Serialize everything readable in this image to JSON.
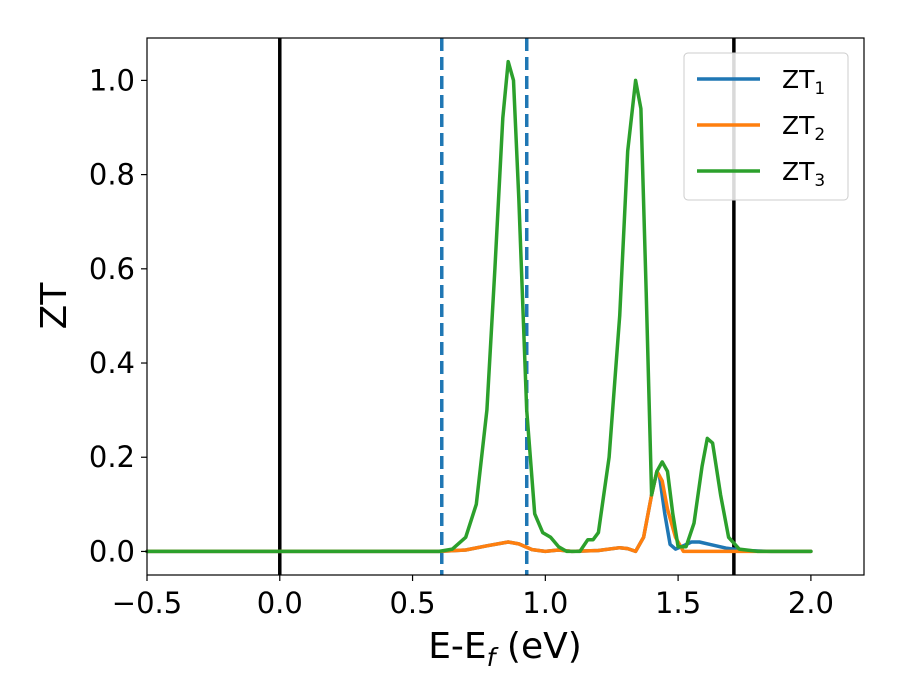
{
  "chart_data": {
    "type": "line",
    "title": "",
    "xlabel": "E-E",
    "xlabel_sub": "f",
    "xlabel_unit": " (eV)",
    "ylabel": "ZT",
    "xlim": [
      -0.5,
      2.2
    ],
    "ylim": [
      -0.05,
      1.09
    ],
    "xticks": [
      -0.5,
      0.0,
      0.5,
      1.0,
      1.5,
      2.0
    ],
    "xtick_labels": [
      "−0.5",
      "0.0",
      "0.5",
      "1.0",
      "1.5",
      "2.0"
    ],
    "yticks": [
      0.0,
      0.2,
      0.4,
      0.6,
      0.8,
      1.0
    ],
    "ytick_labels": [
      "0.0",
      "0.2",
      "0.4",
      "0.6",
      "0.8",
      "1.0"
    ],
    "grid": false,
    "legend_position": "top-right",
    "vlines_solid": [
      0.0,
      1.71
    ],
    "vlines_dashed": [
      0.61,
      0.93
    ],
    "colors": {
      "ZT1": "#1f77b4",
      "ZT2": "#ff7f0e",
      "ZT3": "#2ca02c",
      "vline_solid": "#000000",
      "vline_dashed": "#1f77b4"
    },
    "series": [
      {
        "name": "ZT",
        "name_sub": "1",
        "color": "#1f77b4",
        "points": [
          [
            -0.5,
            0.0
          ],
          [
            0.6,
            0.0
          ],
          [
            0.7,
            0.003
          ],
          [
            0.78,
            0.012
          ],
          [
            0.86,
            0.02
          ],
          [
            0.9,
            0.016
          ],
          [
            0.95,
            0.004
          ],
          [
            1.0,
            0.0
          ],
          [
            1.05,
            0.003
          ],
          [
            1.1,
            0.0
          ],
          [
            1.2,
            0.002
          ],
          [
            1.28,
            0.008
          ],
          [
            1.31,
            0.006
          ],
          [
            1.34,
            0.0
          ],
          [
            1.37,
            0.03
          ],
          [
            1.4,
            0.12
          ],
          [
            1.42,
            0.17
          ],
          [
            1.43,
            0.16
          ],
          [
            1.45,
            0.08
          ],
          [
            1.47,
            0.015
          ],
          [
            1.49,
            0.005
          ],
          [
            1.52,
            0.012
          ],
          [
            1.55,
            0.02
          ],
          [
            1.58,
            0.02
          ],
          [
            1.62,
            0.015
          ],
          [
            1.68,
            0.007
          ],
          [
            1.75,
            0.002
          ],
          [
            1.85,
            0.0
          ],
          [
            2.0,
            0.0
          ]
        ]
      },
      {
        "name": "ZT",
        "name_sub": "2",
        "color": "#ff7f0e",
        "points": [
          [
            -0.5,
            0.0
          ],
          [
            0.6,
            0.0
          ],
          [
            0.7,
            0.003
          ],
          [
            0.78,
            0.012
          ],
          [
            0.86,
            0.02
          ],
          [
            0.9,
            0.016
          ],
          [
            0.95,
            0.004
          ],
          [
            1.0,
            0.0
          ],
          [
            1.05,
            0.003
          ],
          [
            1.1,
            0.0
          ],
          [
            1.2,
            0.002
          ],
          [
            1.28,
            0.008
          ],
          [
            1.31,
            0.006
          ],
          [
            1.34,
            0.0
          ],
          [
            1.37,
            0.03
          ],
          [
            1.4,
            0.12
          ],
          [
            1.42,
            0.17
          ],
          [
            1.44,
            0.15
          ],
          [
            1.46,
            0.09
          ],
          [
            1.49,
            0.03
          ],
          [
            1.52,
            0.0
          ],
          [
            1.55,
            0.0
          ],
          [
            1.6,
            0.0
          ],
          [
            2.0,
            0.0
          ]
        ]
      },
      {
        "name": "ZT",
        "name_sub": "3",
        "color": "#2ca02c",
        "points": [
          [
            -0.5,
            0.0
          ],
          [
            0.6,
            0.0
          ],
          [
            0.65,
            0.005
          ],
          [
            0.7,
            0.03
          ],
          [
            0.74,
            0.1
          ],
          [
            0.78,
            0.3
          ],
          [
            0.81,
            0.6
          ],
          [
            0.84,
            0.92
          ],
          [
            0.86,
            1.04
          ],
          [
            0.88,
            1.0
          ],
          [
            0.9,
            0.75
          ],
          [
            0.93,
            0.3
          ],
          [
            0.96,
            0.08
          ],
          [
            0.99,
            0.04
          ],
          [
            1.02,
            0.03
          ],
          [
            1.05,
            0.01
          ],
          [
            1.08,
            0.0
          ],
          [
            1.13,
            0.0
          ],
          [
            1.16,
            0.025
          ],
          [
            1.18,
            0.025
          ],
          [
            1.2,
            0.04
          ],
          [
            1.24,
            0.2
          ],
          [
            1.28,
            0.5
          ],
          [
            1.31,
            0.85
          ],
          [
            1.34,
            1.0
          ],
          [
            1.36,
            0.94
          ],
          [
            1.38,
            0.55
          ],
          [
            1.4,
            0.12
          ],
          [
            1.42,
            0.17
          ],
          [
            1.44,
            0.19
          ],
          [
            1.46,
            0.17
          ],
          [
            1.48,
            0.08
          ],
          [
            1.5,
            0.01
          ],
          [
            1.53,
            0.01
          ],
          [
            1.56,
            0.06
          ],
          [
            1.59,
            0.18
          ],
          [
            1.61,
            0.24
          ],
          [
            1.63,
            0.23
          ],
          [
            1.66,
            0.12
          ],
          [
            1.69,
            0.03
          ],
          [
            1.73,
            0.005
          ],
          [
            1.8,
            0.0
          ],
          [
            2.0,
            0.0
          ]
        ]
      }
    ]
  }
}
